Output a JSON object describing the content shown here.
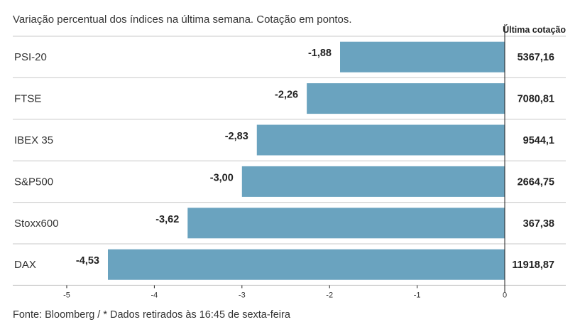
{
  "subtitle": "Variação percentual dos índices na última semana. Cotação em pontos.",
  "source": "Fonte: Bloomberg / * Dados retirados às 16:45 de sexta-feira",
  "colors": {
    "bar": "#6aa3bf",
    "grid": "#c8c8c8",
    "axis": "#222222"
  },
  "chart_data": {
    "type": "bar",
    "orientation": "horizontal",
    "categories": [
      "PSI-20",
      "FTSE",
      "IBEX 35",
      "S&P500",
      "Stoxx600",
      "DAX"
    ],
    "values": [
      -1.88,
      -2.26,
      -2.83,
      -3.0,
      -3.62,
      -4.53
    ],
    "value_labels": [
      "-1,88",
      "-2,26",
      "-2,83",
      "-3,00",
      "-3,62",
      "-4,53"
    ],
    "quote_header": "Última cotação",
    "quotes": [
      "5367,16",
      "7080,81",
      "9544,1",
      "2664,75",
      "367,38",
      "11918,87"
    ],
    "xlim": [
      -5.2,
      0
    ],
    "xticks": [
      -5,
      -4,
      -3,
      -2,
      -1,
      0
    ],
    "xtick_labels": [
      "-5",
      "-4",
      "-3",
      "-2",
      "-1",
      "0"
    ],
    "grid": false
  }
}
